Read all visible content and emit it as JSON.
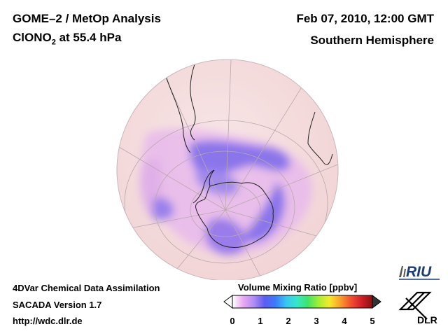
{
  "header": {
    "title_line1": "GOME–2 / MetOp Analysis",
    "title_species_main": "ClONO",
    "title_species_sub": "2",
    "title_species_rest": " at 55.4 hPa",
    "date": "Feb 07, 2010, 12:00 GMT",
    "region": "Southern Hemisphere"
  },
  "footer": {
    "line1": "4DVar Chemical Data Assimilation",
    "line2": "SACADA Version 1.7",
    "line3": "http://wdc.dlr.de"
  },
  "colorbar": {
    "label": "Volume Mixing Ratio [ppbv]",
    "ticks": [
      "0",
      "1",
      "2",
      "3",
      "4",
      "5"
    ],
    "colors": [
      "#ffffff",
      "#e9a9ef",
      "#b08cf5",
      "#5a5cf0",
      "#3d7bf8",
      "#39c6f2",
      "#36e7c8",
      "#3fe36a",
      "#a2ef34",
      "#f4ea2c",
      "#f9a12a",
      "#f05030",
      "#d11e28",
      "#8a1010"
    ],
    "low_color": "#ffffff",
    "high_color": "#333333"
  },
  "logos": {
    "riu_text": "RIU",
    "dlr_text": "DLR"
  },
  "map": {
    "background_color": "#f5dede",
    "low_fill_color": "#9a7bea",
    "mid_fill_color": "#e0b2ee"
  }
}
